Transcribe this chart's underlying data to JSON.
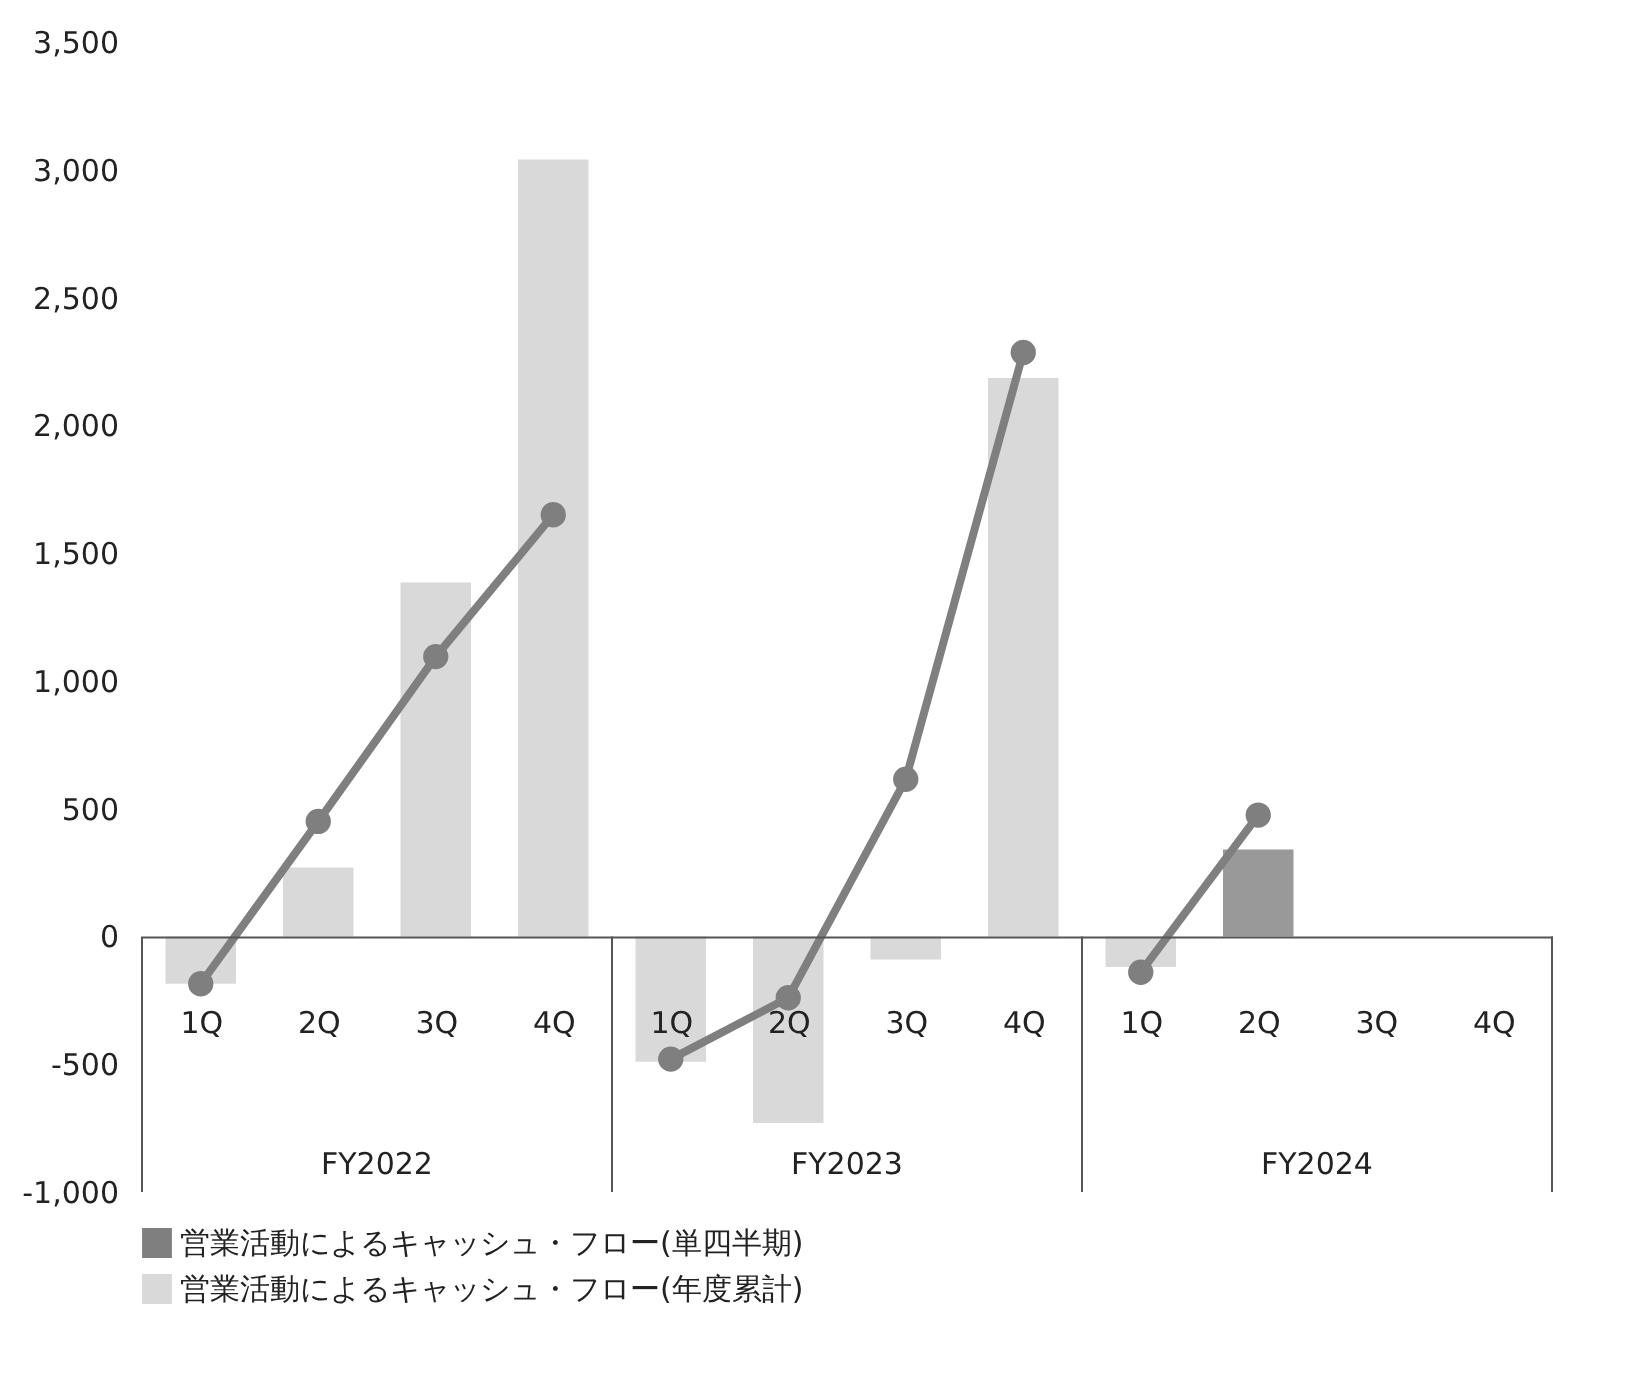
{
  "chart_data": {
    "type": "bar",
    "categories": [
      "1Q",
      "2Q",
      "3Q",
      "4Q",
      "1Q",
      "2Q",
      "3Q",
      "4Q",
      "1Q",
      "2Q",
      "3Q",
      "4Q"
    ],
    "annotations": [
      "FY2022",
      "FY2023",
      "FY2024"
    ],
    "series": [
      {
        "name": "営業活動によるキャッシュ・フロー(単四半期)",
        "type": "line",
        "color": "#7f7f7f",
        "values": [
          -185,
          450,
          1095,
          1650,
          -480,
          -240,
          615,
          2285,
          -140,
          475,
          null,
          null
        ]
      },
      {
        "name": "営業活動によるキャッシュ・フロー(年度累計)",
        "color": "#d9d9d9",
        "colors": [
          "#d9d9d9",
          "#d9d9d9",
          "#d9d9d9",
          "#d9d9d9",
          "#d9d9d9",
          "#d9d9d9",
          "#d9d9d9",
          "#d9d9d9",
          "#d9d9d9",
          "#999999",
          "#d9d9d9",
          "#d9d9d9"
        ],
        "values": [
          -185,
          270,
          1385,
          3040,
          -490,
          -730,
          -90,
          2185,
          -120,
          340,
          null,
          null
        ]
      }
    ],
    "ylim": [
      -1000,
      3500
    ],
    "yticks": [
      {
        "value": -1000,
        "label": "-1,000"
      },
      -500,
      0,
      500,
      {
        "value": 1000,
        "label": "1,000"
      },
      {
        "value": 1500,
        "label": "1,500"
      },
      {
        "value": 2000,
        "label": "2,000"
      },
      {
        "value": 2500,
        "label": "2,500"
      },
      {
        "value": 3000,
        "label": "3,000"
      },
      {
        "value": 3500,
        "label": "3,500"
      }
    ],
    "grid": false,
    "legend": "bottom",
    "marker": "circle",
    "line_style": "solid"
  }
}
